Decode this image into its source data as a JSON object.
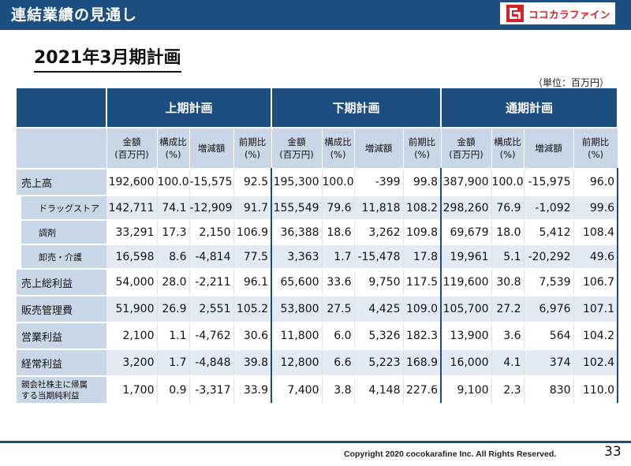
{
  "header": {
    "title": "連結業績の見通し",
    "logo_text": "ココカラファイン"
  },
  "page_title": "2021年3月期計画",
  "unit": "（単位：百万円）",
  "groups": [
    "上期計画",
    "下期計画",
    "通期計画"
  ],
  "subheaders": [
    {
      "l1": "金額",
      "l2": "(百万円)"
    },
    {
      "l1": "構成比",
      "l2": "(%)"
    },
    {
      "l1": "増減額",
      "l2": ""
    },
    {
      "l1": "前期比",
      "l2": "(%)"
    }
  ],
  "rows": [
    {
      "label": "売上高",
      "values": [
        "192,600",
        "100.0",
        "-15,575",
        "92.5",
        "195,300",
        "100.0",
        "-399",
        "99.8",
        "387,900",
        "100.0",
        "-15,975",
        "96.0"
      ]
    },
    {
      "label": "ドラッグストア",
      "values": [
        "142,711",
        "74.1",
        "-12,909",
        "91.7",
        "155,549",
        "79.6",
        "11,818",
        "108.2",
        "298,260",
        "76.9",
        "-1,092",
        "99.6"
      ]
    },
    {
      "label": "調剤",
      "values": [
        "33,291",
        "17.3",
        "2,150",
        "106.9",
        "36,388",
        "18.6",
        "3,262",
        "109.8",
        "69,679",
        "18.0",
        "5,412",
        "108.4"
      ]
    },
    {
      "label": "卸売・介護",
      "values": [
        "16,598",
        "8.6",
        "-4,814",
        "77.5",
        "3,363",
        "1.7",
        "-15,478",
        "17.8",
        "19,961",
        "5.1",
        "-20,292",
        "49.6"
      ]
    },
    {
      "label": "売上総利益",
      "values": [
        "54,000",
        "28.0",
        "-2,211",
        "96.1",
        "65,600",
        "33.6",
        "9,750",
        "117.5",
        "119,600",
        "30.8",
        "7,539",
        "106.7"
      ]
    },
    {
      "label": "販売管理費",
      "values": [
        "51,900",
        "26.9",
        "2,551",
        "105.2",
        "53,800",
        "27.5",
        "4,425",
        "109.0",
        "105,700",
        "27.2",
        "6,976",
        "107.1"
      ]
    },
    {
      "label": "営業利益",
      "values": [
        "2,100",
        "1.1",
        "-4,762",
        "30.6",
        "11,800",
        "6.0",
        "5,326",
        "182.3",
        "13,900",
        "3.6",
        "564",
        "104.2"
      ]
    },
    {
      "label": "経常利益",
      "values": [
        "3,200",
        "1.7",
        "-4,848",
        "39.8",
        "12,800",
        "6.6",
        "5,223",
        "168.9",
        "16,000",
        "4.1",
        "374",
        "102.4"
      ]
    },
    {
      "label_l1": "親会社株主に帰属",
      "label_l2": "する当期純利益",
      "values": [
        "1,700",
        "0.9",
        "-3,317",
        "33.9",
        "7,400",
        "3.8",
        "4,148",
        "227.6",
        "9,100",
        "2.3",
        "830",
        "110.0"
      ]
    }
  ],
  "footer": {
    "copyright": "Copyright 2020 cocokarafine Inc. All Rights Reserved.",
    "page_number": "33"
  },
  "colors": {
    "navy": "#1c4e80",
    "light_blue": "#c9d6e8",
    "logo_red": "#d8202a"
  }
}
